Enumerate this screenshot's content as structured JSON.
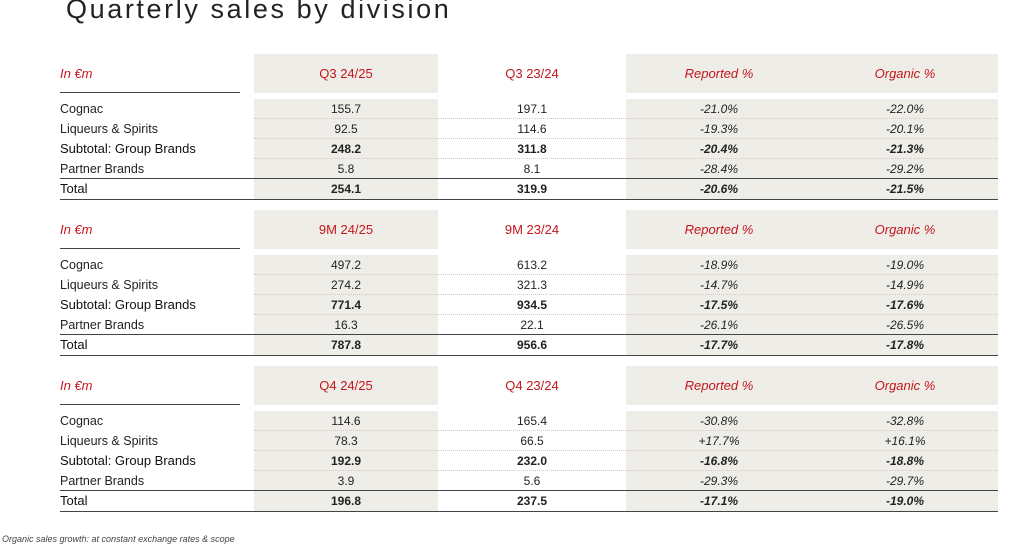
{
  "title": "Quarterly sales by division",
  "unit_label": "In €m",
  "row_labels": [
    "Cognac",
    "Liqueurs & Spirits",
    "Subtotal: Group Brands",
    "Partner Brands",
    "Total"
  ],
  "tables": [
    {
      "headers": [
        "Q3 24/25",
        "Q3 23/24",
        "Reported %",
        "Organic %"
      ],
      "rows": [
        [
          "155.7",
          "197.1",
          "-21.0%",
          "-22.0%"
        ],
        [
          "92.5",
          "114.6",
          "-19.3%",
          "-20.1%"
        ],
        [
          "248.2",
          "311.8",
          "-20.4%",
          "-21.3%"
        ],
        [
          "5.8",
          "8.1",
          "-28.4%",
          "-29.2%"
        ],
        [
          "254.1",
          "319.9",
          "-20.6%",
          "-21.5%"
        ]
      ]
    },
    {
      "headers": [
        "9M 24/25",
        "9M 23/24",
        "Reported %",
        "Organic %"
      ],
      "rows": [
        [
          "497.2",
          "613.2",
          "-18.9%",
          "-19.0%"
        ],
        [
          "274.2",
          "321.3",
          "-14.7%",
          "-14.9%"
        ],
        [
          "771.4",
          "934.5",
          "-17.5%",
          "-17.6%"
        ],
        [
          "16.3",
          "22.1",
          "-26.1%",
          "-26.5%"
        ],
        [
          "787.8",
          "956.6",
          "-17.7%",
          "-17.8%"
        ]
      ]
    },
    {
      "headers": [
        "Q4 24/25",
        "Q4 23/24",
        "Reported %",
        "Organic %"
      ],
      "rows": [
        [
          "114.6",
          "165.4",
          "-30.8%",
          "-32.8%"
        ],
        [
          "78.3",
          "66.5",
          "+17.7%",
          "+16.1%"
        ],
        [
          "192.9",
          "232.0",
          "-16.8%",
          "-18.8%"
        ],
        [
          "3.9",
          "5.6",
          "-29.3%",
          "-29.7%"
        ],
        [
          "196.8",
          "237.5",
          "-17.1%",
          "-19.0%"
        ]
      ]
    }
  ],
  "footnote": "Organic sales growth: at constant exchange rates & scope",
  "colors": {
    "accent": "#c4161c",
    "band": "#efede8",
    "rule": "#444444"
  }
}
